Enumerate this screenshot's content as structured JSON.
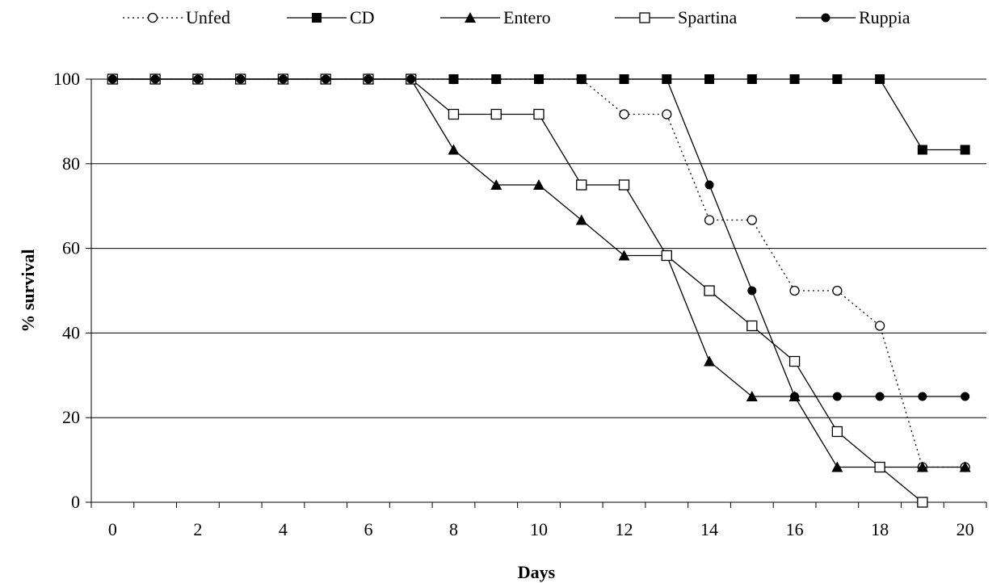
{
  "chart_data": {
    "type": "line",
    "xlabel": "Days",
    "ylabel": "% survival",
    "xlim": [
      0,
      20
    ],
    "ylim": [
      0,
      100
    ],
    "x_tick_labels": [
      "0",
      "2",
      "4",
      "6",
      "8",
      "10",
      "12",
      "14",
      "16",
      "18",
      "20"
    ],
    "y_tick_labels": [
      "0",
      "20",
      "40",
      "60",
      "80",
      "100"
    ],
    "grid": "horizontal",
    "legend_position": "top",
    "x": [
      0,
      1,
      2,
      3,
      4,
      5,
      6,
      7,
      8,
      9,
      10,
      11,
      12,
      13,
      14,
      15,
      16,
      17,
      18,
      19,
      20
    ],
    "series": [
      {
        "name": "Unfed",
        "style": "dotted",
        "marker": "open-circle",
        "x": [
          0,
          1,
          2,
          3,
          4,
          5,
          6,
          7,
          8,
          9,
          10,
          11,
          12,
          13,
          14,
          15,
          16,
          17,
          18,
          19,
          20
        ],
        "values": [
          100,
          100,
          100,
          100,
          100,
          100,
          100,
          100,
          100,
          100,
          100,
          100,
          91.7,
          91.7,
          66.7,
          66.7,
          50,
          50,
          41.7,
          8.3,
          8.3
        ]
      },
      {
        "name": "CD",
        "style": "solid",
        "marker": "filled-square",
        "x": [
          0,
          1,
          2,
          3,
          4,
          5,
          6,
          7,
          8,
          9,
          10,
          11,
          12,
          13,
          14,
          15,
          16,
          17,
          18,
          19,
          20
        ],
        "values": [
          100,
          100,
          100,
          100,
          100,
          100,
          100,
          100,
          100,
          100,
          100,
          100,
          100,
          100,
          100,
          100,
          100,
          100,
          100,
          83.3,
          83.3
        ]
      },
      {
        "name": "Entero",
        "style": "solid",
        "marker": "filled-triangle",
        "x": [
          0,
          1,
          2,
          3,
          4,
          5,
          6,
          7,
          8,
          9,
          10,
          11,
          12,
          13,
          14,
          15,
          16,
          17,
          18,
          19,
          20
        ],
        "values": [
          100,
          100,
          100,
          100,
          100,
          100,
          100,
          100,
          83.3,
          75,
          75,
          66.7,
          58.3,
          58.3,
          33.3,
          25,
          25,
          8.3,
          8.3,
          8.3,
          8.3
        ]
      },
      {
        "name": "Spartina",
        "style": "solid",
        "marker": "open-square",
        "x": [
          0,
          1,
          2,
          3,
          4,
          5,
          6,
          7,
          8,
          9,
          10,
          11,
          12,
          13,
          14,
          15,
          16,
          17,
          18,
          19
        ],
        "values": [
          100,
          100,
          100,
          100,
          100,
          100,
          100,
          100,
          91.7,
          91.7,
          91.7,
          75,
          75,
          58.3,
          50,
          41.7,
          33.3,
          16.7,
          8.3,
          0
        ]
      },
      {
        "name": "Ruppia",
        "style": "solid",
        "marker": "filled-circle",
        "x": [
          0,
          1,
          2,
          3,
          4,
          5,
          6,
          7,
          8,
          9,
          10,
          11,
          12,
          13,
          14,
          15,
          16,
          17,
          18,
          19,
          20
        ],
        "values": [
          100,
          100,
          100,
          100,
          100,
          100,
          100,
          100,
          100,
          100,
          100,
          100,
          100,
          100,
          75,
          50,
          25,
          25,
          25,
          25,
          25
        ]
      }
    ],
    "colors": {
      "line": "#000000",
      "grid": "#000000",
      "background": "#ffffff"
    }
  }
}
